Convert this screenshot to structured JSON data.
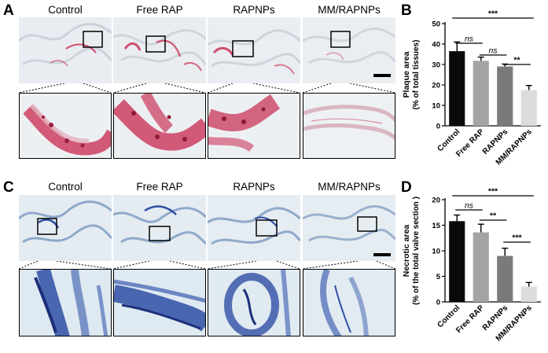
{
  "panels": {
    "A": {
      "label": "A",
      "columns": [
        "Control",
        "Free RAP",
        "RAPNPs",
        "MM/RAPNPs"
      ]
    },
    "B": {
      "label": "B"
    },
    "C": {
      "label": "C",
      "columns": [
        "Control",
        "Free RAP",
        "RAPNPs",
        "MM/RAPNPs"
      ]
    },
    "D": {
      "label": "D"
    }
  },
  "colors": {
    "oil_red_bg": "#e9edf1",
    "oil_red_stain": "#c8284f",
    "toluidine_bg": "#dfe8ef",
    "toluidine_stain": "#2f4fa5",
    "bar_control": "#0a0a0a",
    "bar_free_rap": "#a4a4a4",
    "bar_rapnps": "#7a7a7a",
    "bar_mm_rapnps": "#dcdcdc"
  },
  "chart_data": [
    {
      "type": "bar",
      "panel": "B",
      "categories": [
        "Control",
        "Free RAP",
        "RAPNPs",
        "MM/RAPNPs"
      ],
      "values": [
        36.5,
        31.8,
        29.0,
        17.5
      ],
      "errors": [
        4.5,
        1.8,
        1.2,
        2.2
      ],
      "ylabel_line1": "Plaque area",
      "ylabel_line2": "(% of total tissues)",
      "ylim": [
        0,
        50
      ],
      "yticks": [
        0,
        10,
        20,
        30,
        40,
        50
      ],
      "significance": [
        {
          "from": 0,
          "to": 1,
          "label": "ns",
          "italic": true,
          "level": 0
        },
        {
          "from": 1,
          "to": 2,
          "label": "ns",
          "italic": true,
          "level": 1
        },
        {
          "from": 2,
          "to": 3,
          "label": "**",
          "italic": false,
          "level": 2
        },
        {
          "from": 0,
          "to": 3,
          "label": "***",
          "italic": false,
          "level": 3
        }
      ]
    },
    {
      "type": "bar",
      "panel": "D",
      "categories": [
        "Control",
        "Free RAP",
        "RAPNPs",
        "MM/RAPNPs"
      ],
      "values": [
        15.8,
        13.6,
        9.0,
        3.0
      ],
      "errors": [
        1.2,
        1.6,
        1.5,
        0.8
      ],
      "ylabel_line1": "Necrotic area",
      "ylabel_line2": "(% of the total valve section )",
      "ylim": [
        0,
        20
      ],
      "yticks": [
        0,
        5,
        10,
        15,
        20
      ],
      "significance": [
        {
          "from": 0,
          "to": 1,
          "label": "ns",
          "italic": true,
          "level": 0
        },
        {
          "from": 1,
          "to": 2,
          "label": "**",
          "italic": false,
          "level": 1
        },
        {
          "from": 2,
          "to": 3,
          "label": "***",
          "italic": false,
          "level": 2
        },
        {
          "from": 0,
          "to": 3,
          "label": "***",
          "italic": false,
          "level": 3
        }
      ]
    }
  ]
}
